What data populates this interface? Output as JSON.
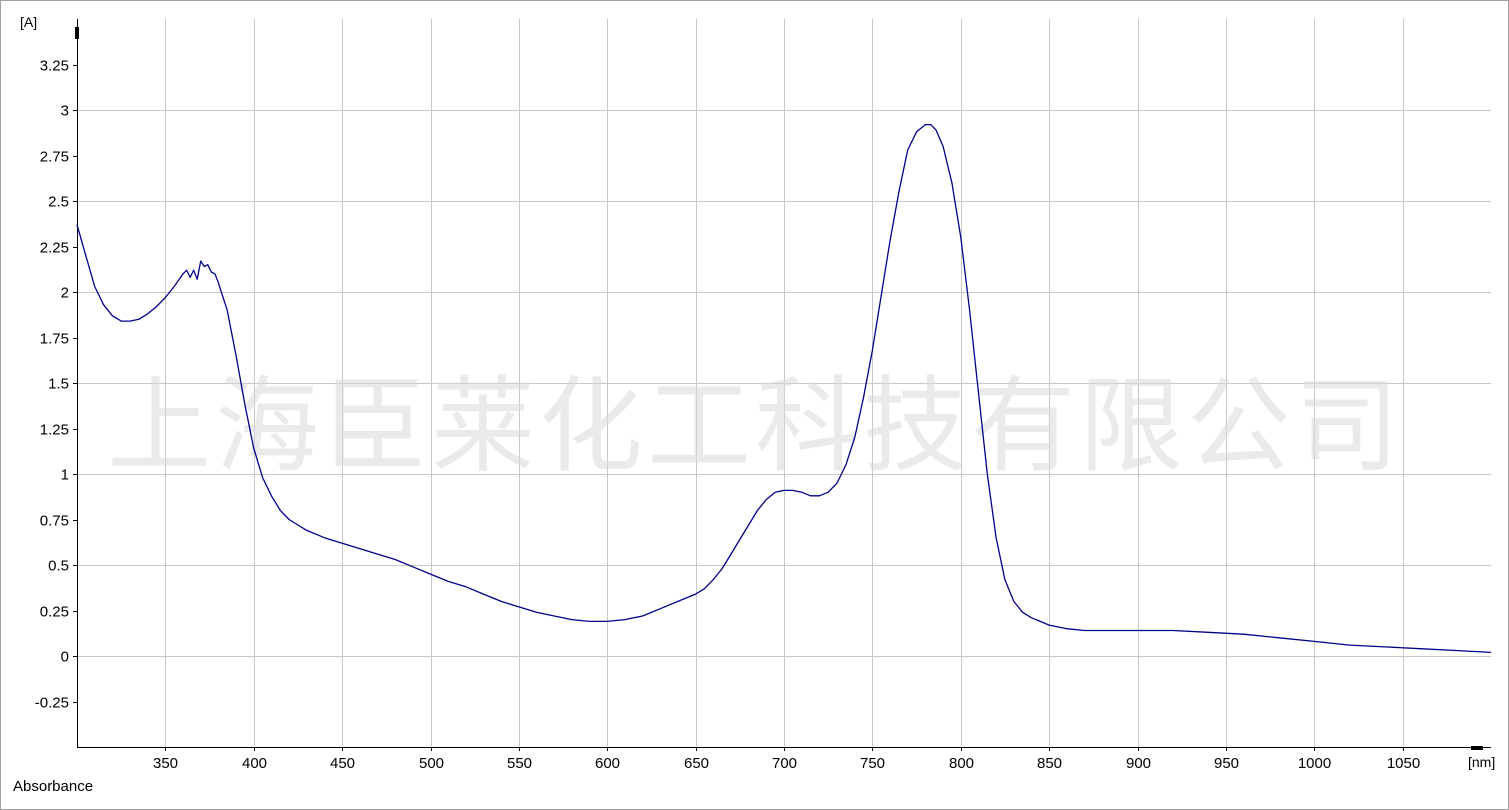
{
  "chart_data": {
    "type": "line",
    "y_unit": "[A]",
    "x_unit": "[nm]",
    "series": [
      {
        "name": "Absorbance",
        "color": "#00008b",
        "x": [
          300,
          305,
          310,
          315,
          320,
          325,
          330,
          335,
          340,
          345,
          350,
          355,
          360,
          362,
          364,
          366,
          368,
          370,
          372,
          374,
          376,
          378,
          380,
          385,
          390,
          395,
          400,
          405,
          410,
          415,
          420,
          425,
          430,
          440,
          450,
          460,
          470,
          480,
          490,
          500,
          510,
          520,
          530,
          540,
          550,
          560,
          570,
          580,
          590,
          600,
          610,
          620,
          630,
          640,
          650,
          655,
          660,
          665,
          670,
          675,
          680,
          685,
          690,
          695,
          700,
          705,
          710,
          715,
          720,
          725,
          730,
          735,
          740,
          745,
          750,
          755,
          760,
          765,
          770,
          775,
          780,
          783,
          786,
          790,
          795,
          800,
          805,
          810,
          815,
          820,
          825,
          830,
          835,
          840,
          845,
          850,
          860,
          870,
          880,
          900,
          920,
          940,
          960,
          980,
          1000,
          1020,
          1040,
          1060,
          1080,
          1100
        ],
        "y": [
          2.37,
          2.2,
          2.03,
          1.93,
          1.87,
          1.84,
          1.84,
          1.85,
          1.88,
          1.92,
          1.97,
          2.03,
          2.1,
          2.12,
          2.08,
          2.12,
          2.07,
          2.17,
          2.14,
          2.15,
          2.11,
          2.1,
          2.05,
          1.9,
          1.65,
          1.38,
          1.14,
          0.98,
          0.88,
          0.8,
          0.75,
          0.72,
          0.69,
          0.65,
          0.62,
          0.59,
          0.56,
          0.53,
          0.49,
          0.45,
          0.41,
          0.38,
          0.34,
          0.3,
          0.27,
          0.24,
          0.22,
          0.2,
          0.19,
          0.19,
          0.2,
          0.22,
          0.26,
          0.3,
          0.34,
          0.37,
          0.42,
          0.48,
          0.56,
          0.64,
          0.72,
          0.8,
          0.86,
          0.9,
          0.91,
          0.91,
          0.9,
          0.88,
          0.88,
          0.9,
          0.95,
          1.05,
          1.2,
          1.42,
          1.68,
          1.98,
          2.28,
          2.55,
          2.78,
          2.88,
          2.92,
          2.92,
          2.89,
          2.8,
          2.6,
          2.3,
          1.9,
          1.45,
          1.0,
          0.65,
          0.42,
          0.3,
          0.24,
          0.21,
          0.19,
          0.17,
          0.15,
          0.14,
          0.14,
          0.14,
          0.14,
          0.13,
          0.12,
          0.1,
          0.08,
          0.06,
          0.05,
          0.04,
          0.03,
          0.02
        ]
      }
    ],
    "xlim": [
      300,
      1100
    ],
    "ylim": [
      -0.5,
      3.5
    ],
    "x_ticks": [
      350,
      400,
      450,
      500,
      550,
      600,
      650,
      700,
      750,
      800,
      850,
      900,
      950,
      1000,
      1050
    ],
    "y_ticks": [
      -0.25,
      0,
      0.25,
      0.5,
      0.75,
      1,
      1.25,
      1.5,
      1.75,
      2,
      2.25,
      2.5,
      2.75,
      3,
      3.25
    ],
    "grid": true,
    "legend_text": "Absorbance",
    "legend_position": "bottom-left",
    "watermark": "上海臣莱化工科技有限公司",
    "colors": {
      "line": "#00008b",
      "grid": "#c8c8c8",
      "axis": "#000000",
      "frame": "#a0a0a0",
      "watermark": "#d9d9d9"
    }
  }
}
